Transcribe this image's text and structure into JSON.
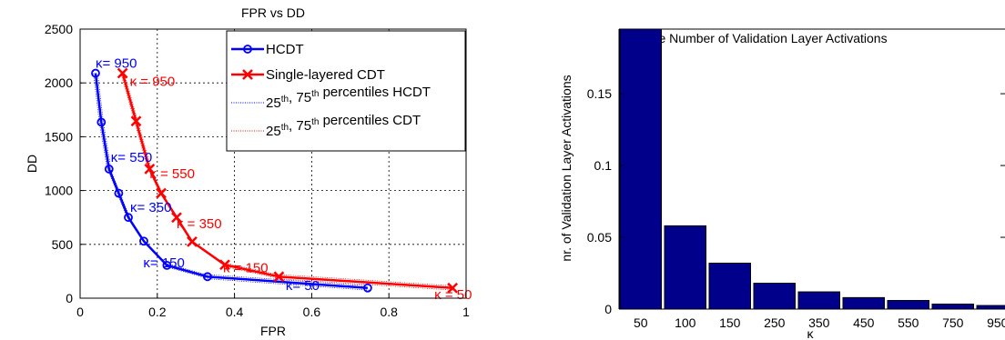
{
  "chart_data": [
    {
      "type": "line",
      "title": "FPR vs DD",
      "xlabel": "FPR",
      "ylabel": "DD",
      "xlim": [
        0,
        1
      ],
      "ylim": [
        0,
        2500
      ],
      "xticks": [
        "0",
        "0.2",
        "0.4",
        "0.6",
        "0.8",
        "1"
      ],
      "yticks": [
        "0",
        "500",
        "1000",
        "1500",
        "2000",
        "2500"
      ],
      "grid": true,
      "legend_position": "top-right",
      "series": [
        {
          "name": "HCDT",
          "color": "#0000ff",
          "marker": "circle",
          "x": [
            0.04,
            0.055,
            0.075,
            0.1,
            0.125,
            0.165,
            0.225,
            0.33,
            0.745
          ],
          "y": [
            2090,
            1635,
            1200,
            975,
            750,
            530,
            305,
            200,
            95
          ]
        },
        {
          "name": "Single-layered CDT",
          "color": "#ff0000",
          "marker": "x",
          "x": [
            0.11,
            0.145,
            0.18,
            0.21,
            0.25,
            0.29,
            0.375,
            0.515,
            0.965
          ],
          "y": [
            2090,
            1645,
            1200,
            975,
            750,
            525,
            310,
            200,
            95
          ]
        },
        {
          "name": "25th, 75th percentiles HCDT",
          "color": "#0000ff",
          "style": "dotted"
        },
        {
          "name": "25th, 75th percentiles CDT",
          "color": "#ff0000",
          "style": "dotted"
        }
      ],
      "legend_entries": [
        {
          "prefix": "HCDT",
          "sup": "",
          "suffix": ""
        },
        {
          "prefix": "Single-layered CDT",
          "sup": "",
          "suffix": ""
        },
        {
          "prefix": "25",
          "sup": "th",
          "mid": ", 75",
          "sup2": "th",
          "suffix": " percentiles HCDT"
        },
        {
          "prefix": "25",
          "sup": "th",
          "mid": ", 75",
          "sup2": "th",
          "suffix": " percentiles CDT"
        }
      ],
      "annotations": [
        {
          "text": "κ= 950",
          "color": "#0000ff",
          "x": 0.04,
          "y": 2090
        },
        {
          "text": "κ = 950",
          "color": "#ff0000",
          "x": 0.11,
          "y": 2090
        },
        {
          "text": "κ= 550",
          "color": "#0000ff",
          "x": 0.075,
          "y": 1200
        },
        {
          "text": "κ = 550",
          "color": "#ff0000",
          "x": 0.18,
          "y": 1200
        },
        {
          "text": "κ= 350",
          "color": "#0000ff",
          "x": 0.125,
          "y": 750
        },
        {
          "text": "κ = 350",
          "color": "#ff0000",
          "x": 0.25,
          "y": 750
        },
        {
          "text": "κ= 150",
          "color": "#0000ff",
          "x": 0.225,
          "y": 305
        },
        {
          "text": "κ = 150",
          "color": "#ff0000",
          "x": 0.375,
          "y": 310
        },
        {
          "text": "κ= 50",
          "color": "#0000ff",
          "x": 0.745,
          "y": 95
        },
        {
          "text": "κ = 50",
          "color": "#ff0000",
          "x": 0.965,
          "y": 95
        }
      ]
    },
    {
      "type": "bar",
      "title": "Average Number of Validation Layer Activations",
      "xlabel": "κ",
      "ylabel": "nr. of Validation Layer Activations",
      "ylim": [
        0,
        0.195
      ],
      "yticks": [
        "0",
        "0.05",
        "0.1",
        "0.15"
      ],
      "categories": [
        "50",
        "100",
        "150",
        "250",
        "350",
        "450",
        "550",
        "750",
        "950"
      ],
      "values": [
        0.195,
        0.058,
        0.032,
        0.018,
        0.012,
        0.008,
        0.006,
        0.0035,
        0.0025
      ],
      "color": "#00008b"
    }
  ]
}
